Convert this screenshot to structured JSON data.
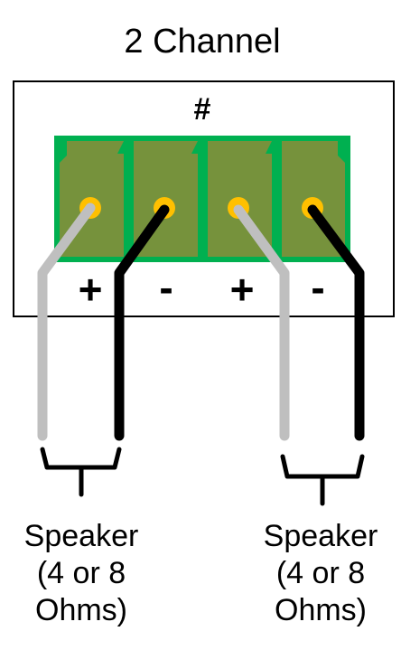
{
  "title": "2 Channel",
  "terminal_block": {
    "label": "#",
    "signs": [
      "+",
      "-",
      "+",
      "-"
    ]
  },
  "speakers": [
    {
      "line1": "Speaker",
      "line2": "(4 or 8",
      "line3": "Ohms)"
    },
    {
      "line1": "Speaker",
      "line2": "(4 or 8",
      "line3": "Ohms)"
    }
  ],
  "colors": {
    "terminal_fill": "#76923c",
    "terminal_border": "#00b050",
    "screw": "#ffc000",
    "wire_positive": "#bfbfbf",
    "wire_negative": "#000000",
    "outline": "#000000"
  }
}
